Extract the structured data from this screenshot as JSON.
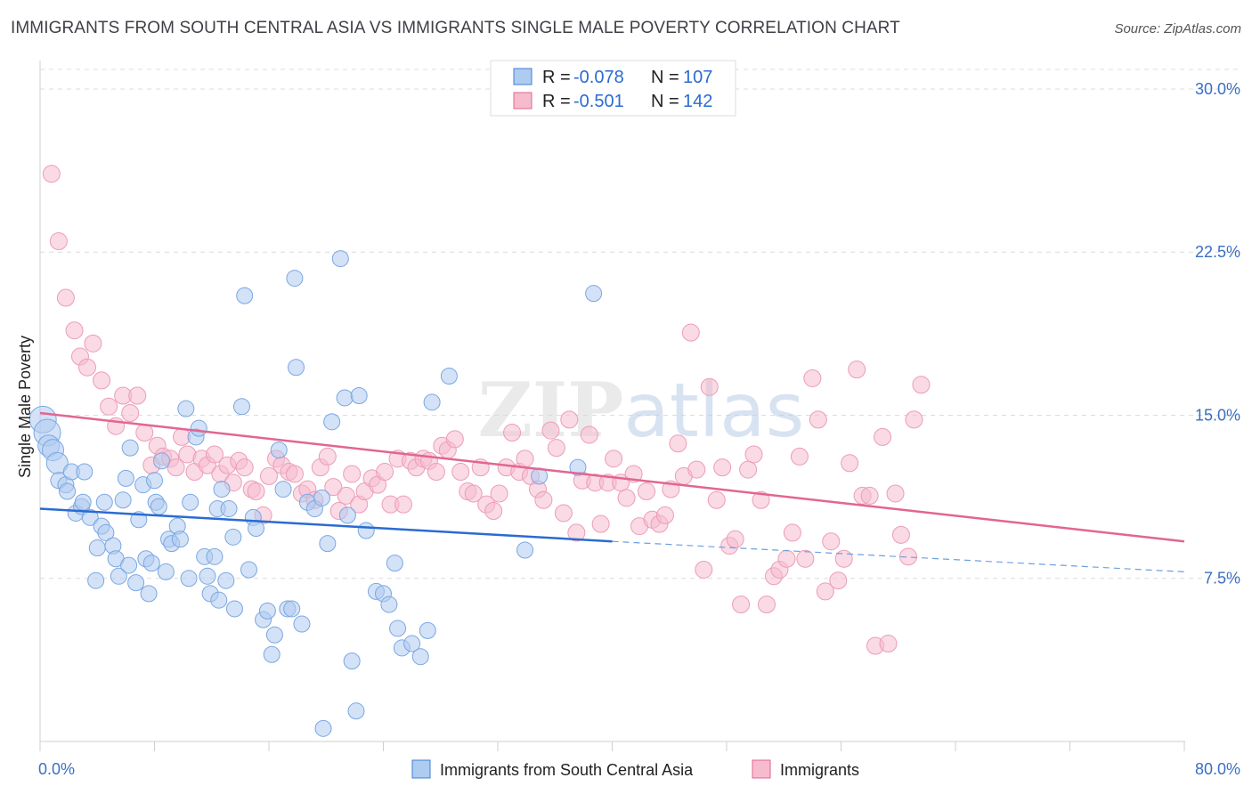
{
  "title": "IMMIGRANTS FROM SOUTH CENTRAL ASIA VS IMMIGRANTS SINGLE MALE POVERTY CORRELATION CHART",
  "source": "Source: ZipAtlas.com",
  "watermark": "ZIPatlas",
  "colors": {
    "blue": "#3f7fd6",
    "blue_fill": "#aecbf0",
    "pink": "#e26593",
    "pink_fill": "#f6bccd",
    "tick": "#3a6fc4"
  },
  "legend": {
    "rows": [
      {
        "r_label": "R =",
        "r_value": "-0.078",
        "n_label": "N =",
        "n_value": "107"
      },
      {
        "r_label": "R =",
        "r_value": "-0.501",
        "n_label": "N =",
        "n_value": "142"
      }
    ]
  },
  "bottom_legend": [
    "Immigrants from South Central Asia",
    "Immigrants"
  ],
  "chart_data": {
    "type": "scatter",
    "title": "IMMIGRANTS FROM SOUTH CENTRAL ASIA VS IMMIGRANTS SINGLE MALE POVERTY CORRELATION CHART",
    "xlabel": "",
    "ylabel": "Single Male Poverty",
    "xlim": [
      0,
      80
    ],
    "ylim": [
      0,
      30.9
    ],
    "x_tick_labels": [
      "0.0%",
      "80.0%"
    ],
    "y_tick_labels": [
      "7.5%",
      "15.0%",
      "22.5%",
      "30.0%"
    ],
    "y_ticks": [
      7.5,
      15.0,
      22.5,
      30.0
    ],
    "grid": true,
    "legend_position": "top-center",
    "series": [
      {
        "name": "Immigrants from South Central Asia",
        "color": "#3f7fd6",
        "trend": {
          "x": [
            0,
            40,
            80
          ],
          "y": [
            10.7,
            9.2,
            7.8
          ],
          "solid_until": 40
        },
        "points": [
          [
            0.2,
            14.8
          ],
          [
            0.5,
            14.2
          ],
          [
            0.6,
            13.6
          ],
          [
            0.9,
            13.4
          ],
          [
            1.2,
            12.8
          ],
          [
            1.3,
            12.0
          ],
          [
            1.8,
            11.8
          ],
          [
            1.9,
            11.5
          ],
          [
            2.2,
            12.4
          ],
          [
            2.5,
            10.5
          ],
          [
            2.9,
            10.8
          ],
          [
            3.0,
            11.0
          ],
          [
            3.1,
            12.4
          ],
          [
            3.5,
            10.3
          ],
          [
            3.9,
            7.4
          ],
          [
            4.0,
            8.9
          ],
          [
            4.3,
            9.9
          ],
          [
            4.5,
            11.0
          ],
          [
            4.6,
            9.6
          ],
          [
            5.1,
            9.0
          ],
          [
            5.3,
            8.4
          ],
          [
            5.5,
            7.6
          ],
          [
            5.8,
            11.1
          ],
          [
            6.0,
            12.1
          ],
          [
            6.2,
            8.1
          ],
          [
            6.3,
            13.5
          ],
          [
            6.7,
            7.3
          ],
          [
            6.9,
            10.2
          ],
          [
            7.2,
            11.8
          ],
          [
            7.4,
            8.4
          ],
          [
            7.6,
            6.8
          ],
          [
            7.8,
            8.2
          ],
          [
            8.0,
            12.0
          ],
          [
            8.1,
            11.0
          ],
          [
            8.3,
            10.8
          ],
          [
            8.5,
            12.9
          ],
          [
            8.8,
            7.8
          ],
          [
            9.0,
            9.3
          ],
          [
            9.2,
            9.1
          ],
          [
            9.6,
            9.9
          ],
          [
            9.8,
            9.3
          ],
          [
            10.2,
            15.3
          ],
          [
            10.4,
            7.5
          ],
          [
            10.5,
            11.0
          ],
          [
            10.9,
            14.0
          ],
          [
            11.1,
            14.4
          ],
          [
            11.5,
            8.5
          ],
          [
            11.7,
            7.6
          ],
          [
            11.9,
            6.8
          ],
          [
            12.2,
            8.5
          ],
          [
            12.4,
            10.7
          ],
          [
            12.5,
            6.5
          ],
          [
            12.7,
            11.6
          ],
          [
            13.0,
            7.4
          ],
          [
            13.2,
            10.7
          ],
          [
            13.5,
            9.4
          ],
          [
            13.6,
            6.1
          ],
          [
            14.1,
            15.4
          ],
          [
            14.3,
            20.5
          ],
          [
            14.6,
            7.9
          ],
          [
            14.9,
            10.3
          ],
          [
            15.1,
            9.8
          ],
          [
            15.6,
            5.6
          ],
          [
            15.9,
            6.0
          ],
          [
            16.2,
            4.0
          ],
          [
            16.4,
            4.9
          ],
          [
            16.7,
            13.4
          ],
          [
            17.0,
            11.6
          ],
          [
            17.3,
            6.1
          ],
          [
            17.6,
            6.1
          ],
          [
            17.8,
            21.3
          ],
          [
            17.9,
            17.2
          ],
          [
            18.3,
            5.4
          ],
          [
            18.7,
            11.0
          ],
          [
            19.2,
            10.7
          ],
          [
            19.7,
            11.2
          ],
          [
            19.8,
            0.6
          ],
          [
            20.1,
            9.1
          ],
          [
            20.4,
            14.7
          ],
          [
            21.0,
            22.2
          ],
          [
            21.3,
            15.8
          ],
          [
            21.5,
            10.4
          ],
          [
            21.8,
            3.7
          ],
          [
            22.1,
            1.4
          ],
          [
            22.3,
            15.9
          ],
          [
            22.8,
            9.7
          ],
          [
            23.5,
            6.9
          ],
          [
            24.0,
            6.8
          ],
          [
            24.4,
            6.3
          ],
          [
            24.8,
            8.2
          ],
          [
            25.0,
            5.2
          ],
          [
            25.3,
            4.3
          ],
          [
            26.0,
            4.5
          ],
          [
            26.6,
            3.9
          ],
          [
            27.1,
            5.1
          ],
          [
            27.4,
            15.6
          ],
          [
            28.6,
            16.8
          ],
          [
            33.9,
            8.8
          ],
          [
            34.9,
            12.2
          ],
          [
            37.6,
            12.6
          ],
          [
            38.7,
            20.6
          ]
        ]
      },
      {
        "name": "Immigrants",
        "color": "#e26593",
        "trend": {
          "x": [
            0,
            80
          ],
          "y": [
            15.1,
            9.2
          ]
        },
        "points": [
          [
            0.8,
            26.1
          ],
          [
            1.3,
            23.0
          ],
          [
            1.8,
            20.4
          ],
          [
            2.4,
            18.9
          ],
          [
            2.8,
            17.7
          ],
          [
            3.3,
            17.2
          ],
          [
            3.7,
            18.3
          ],
          [
            4.3,
            16.6
          ],
          [
            4.8,
            15.4
          ],
          [
            5.3,
            14.5
          ],
          [
            5.8,
            15.9
          ],
          [
            6.3,
            15.1
          ],
          [
            6.8,
            15.9
          ],
          [
            7.3,
            14.2
          ],
          [
            7.8,
            12.7
          ],
          [
            8.2,
            13.6
          ],
          [
            8.6,
            13.1
          ],
          [
            9.1,
            13.0
          ],
          [
            9.5,
            12.6
          ],
          [
            9.9,
            14.0
          ],
          [
            10.3,
            13.2
          ],
          [
            10.8,
            12.4
          ],
          [
            11.3,
            13.0
          ],
          [
            11.7,
            12.7
          ],
          [
            12.2,
            13.2
          ],
          [
            12.6,
            12.3
          ],
          [
            13.1,
            12.7
          ],
          [
            13.5,
            11.9
          ],
          [
            13.9,
            12.9
          ],
          [
            14.3,
            12.6
          ],
          [
            14.8,
            11.6
          ],
          [
            15.1,
            11.5
          ],
          [
            15.6,
            10.4
          ],
          [
            16.0,
            12.2
          ],
          [
            16.5,
            13.0
          ],
          [
            16.9,
            12.7
          ],
          [
            17.4,
            12.4
          ],
          [
            17.8,
            12.3
          ],
          [
            18.3,
            11.4
          ],
          [
            18.7,
            11.6
          ],
          [
            19.2,
            11.1
          ],
          [
            19.6,
            12.6
          ],
          [
            20.1,
            13.1
          ],
          [
            20.5,
            11.7
          ],
          [
            20.9,
            10.6
          ],
          [
            21.4,
            11.3
          ],
          [
            21.8,
            12.3
          ],
          [
            22.3,
            10.9
          ],
          [
            22.7,
            11.5
          ],
          [
            23.2,
            12.1
          ],
          [
            23.6,
            11.8
          ],
          [
            24.1,
            12.4
          ],
          [
            24.5,
            10.9
          ],
          [
            25.0,
            13.0
          ],
          [
            25.4,
            10.9
          ],
          [
            25.9,
            12.9
          ],
          [
            26.3,
            12.6
          ],
          [
            26.8,
            13.0
          ],
          [
            27.2,
            12.9
          ],
          [
            27.7,
            12.4
          ],
          [
            28.1,
            13.6
          ],
          [
            28.5,
            13.4
          ],
          [
            29.0,
            13.9
          ],
          [
            29.4,
            12.4
          ],
          [
            29.9,
            11.5
          ],
          [
            30.3,
            11.4
          ],
          [
            30.8,
            12.6
          ],
          [
            31.2,
            10.9
          ],
          [
            31.7,
            10.6
          ],
          [
            32.1,
            11.4
          ],
          [
            32.6,
            12.6
          ],
          [
            33.0,
            14.2
          ],
          [
            33.5,
            12.4
          ],
          [
            33.9,
            13.0
          ],
          [
            34.3,
            12.2
          ],
          [
            34.8,
            11.6
          ],
          [
            35.2,
            11.1
          ],
          [
            35.7,
            14.3
          ],
          [
            36.1,
            13.5
          ],
          [
            36.6,
            10.5
          ],
          [
            37.0,
            14.8
          ],
          [
            37.5,
            9.6
          ],
          [
            37.9,
            12.0
          ],
          [
            38.4,
            14.1
          ],
          [
            38.8,
            11.9
          ],
          [
            39.2,
            10.0
          ],
          [
            39.7,
            11.9
          ],
          [
            40.1,
            13.0
          ],
          [
            40.6,
            11.9
          ],
          [
            41.0,
            11.2
          ],
          [
            41.5,
            12.3
          ],
          [
            41.9,
            9.9
          ],
          [
            42.4,
            11.5
          ],
          [
            42.8,
            10.2
          ],
          [
            43.3,
            10.0
          ],
          [
            43.7,
            10.4
          ],
          [
            44.1,
            11.6
          ],
          [
            44.6,
            13.7
          ],
          [
            45.0,
            12.2
          ],
          [
            45.5,
            18.8
          ],
          [
            45.9,
            12.5
          ],
          [
            46.4,
            7.9
          ],
          [
            46.8,
            16.3
          ],
          [
            47.3,
            11.1
          ],
          [
            47.7,
            12.6
          ],
          [
            48.2,
            9.0
          ],
          [
            48.6,
            9.3
          ],
          [
            49.0,
            6.3
          ],
          [
            49.5,
            12.5
          ],
          [
            49.9,
            13.2
          ],
          [
            50.4,
            11.1
          ],
          [
            50.8,
            6.3
          ],
          [
            51.3,
            7.6
          ],
          [
            51.7,
            7.9
          ],
          [
            52.2,
            8.4
          ],
          [
            52.6,
            9.6
          ],
          [
            53.1,
            13.1
          ],
          [
            53.5,
            8.4
          ],
          [
            54.0,
            16.7
          ],
          [
            54.4,
            14.8
          ],
          [
            54.9,
            6.9
          ],
          [
            55.3,
            9.2
          ],
          [
            55.8,
            7.4
          ],
          [
            56.2,
            8.4
          ],
          [
            56.6,
            12.8
          ],
          [
            57.1,
            17.1
          ],
          [
            57.5,
            11.3
          ],
          [
            58.0,
            11.3
          ],
          [
            58.4,
            4.4
          ],
          [
            58.9,
            14.0
          ],
          [
            59.3,
            4.5
          ],
          [
            59.8,
            11.4
          ],
          [
            60.2,
            9.5
          ],
          [
            60.7,
            8.5
          ],
          [
            61.1,
            14.8
          ],
          [
            61.6,
            16.4
          ]
        ]
      }
    ]
  }
}
